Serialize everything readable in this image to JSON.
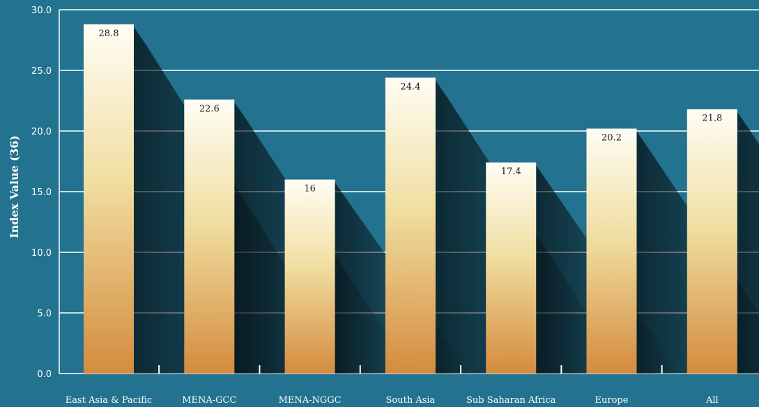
{
  "colors": {
    "background": "#23728f",
    "grid": "#ffffff",
    "bar_top": "#fffdf5",
    "bar_mid": "#f0dea0",
    "bar_bottom": "#d48b3e",
    "label_text": "#1a1a1a"
  },
  "chart_data": {
    "type": "bar",
    "title": "",
    "xlabel": "",
    "ylabel": "Index Value (36)",
    "ylim": [
      0,
      30
    ],
    "yticks": [
      "0.0",
      "5.0",
      "10.0",
      "15.0",
      "20.0",
      "25.0",
      "30.0"
    ],
    "grid": true,
    "categories": [
      "East Asia & Pacific",
      "MENA-GCC",
      "MENA-NGGC",
      "South Asia",
      "Sub Saharan Africa",
      "Europe",
      "All"
    ],
    "values": [
      28.8,
      22.6,
      16,
      24.4,
      17.4,
      20.2,
      21.8
    ],
    "data_labels": [
      "28.8",
      "22.6",
      "16",
      "24.4",
      "17.4",
      "20.2",
      "21.8"
    ]
  }
}
